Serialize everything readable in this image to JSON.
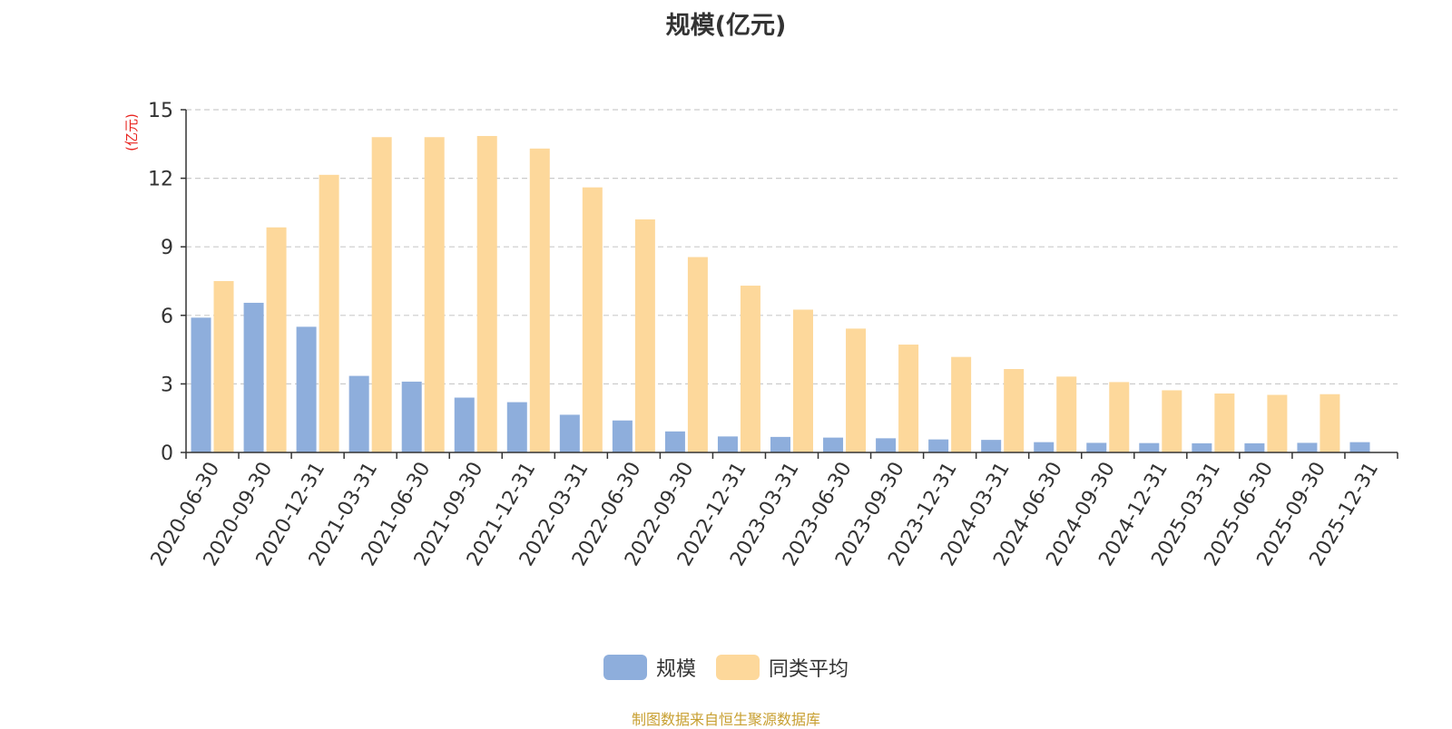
{
  "chart_data": {
    "type": "bar",
    "title": "规模(亿元)",
    "ylabel": "(亿元)",
    "xlabel": "",
    "ylim": [
      0,
      15
    ],
    "yticks": [
      0,
      3,
      6,
      9,
      12,
      15
    ],
    "grid": true,
    "legend_position": "bottom-center",
    "categories": [
      "2020-06-30",
      "2020-09-30",
      "2020-12-31",
      "2021-03-31",
      "2021-06-30",
      "2021-09-30",
      "2021-12-31",
      "2022-03-31",
      "2022-06-30",
      "2022-09-30",
      "2022-12-31",
      "2023-03-31",
      "2023-06-30",
      "2023-09-30",
      "2023-12-31",
      "2024-03-31",
      "2024-06-30",
      "2024-09-30",
      "2024-12-31",
      "2025-03-31",
      "2025-06-30",
      "2025-09-30",
      "2025-12-31"
    ],
    "series": [
      {
        "name": "规模",
        "color": "#8eaedc",
        "values": [
          5.9,
          6.55,
          5.5,
          3.35,
          3.1,
          2.4,
          2.2,
          1.65,
          1.4,
          0.92,
          0.7,
          0.68,
          0.65,
          0.62,
          0.57,
          0.55,
          0.45,
          0.42,
          0.41,
          0.4,
          0.4,
          0.42,
          0.45
        ]
      },
      {
        "name": "同类平均",
        "color": "#fdd89b",
        "values": [
          7.5,
          9.85,
          12.15,
          13.8,
          13.8,
          13.85,
          13.3,
          11.6,
          10.2,
          8.55,
          7.3,
          6.25,
          5.42,
          4.72,
          4.18,
          3.65,
          3.32,
          3.08,
          2.72,
          2.58,
          2.52,
          2.55,
          null
        ]
      }
    ]
  },
  "source_note": "制图数据来自恒生聚源数据库"
}
